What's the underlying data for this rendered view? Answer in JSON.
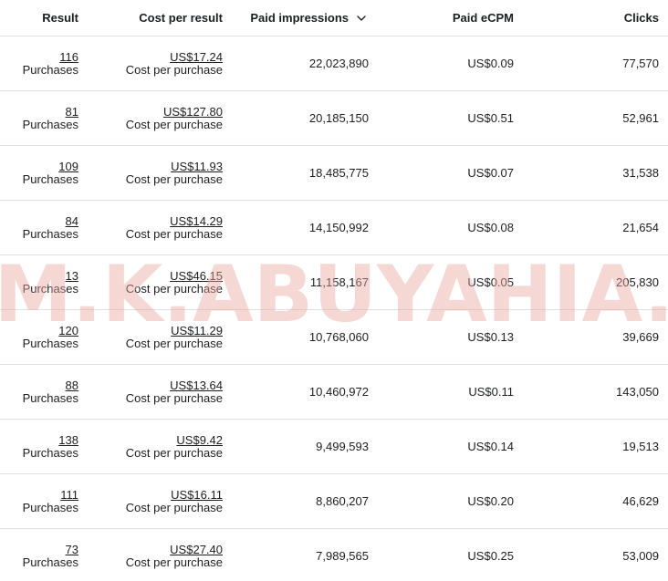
{
  "headers": {
    "result": "Result",
    "cost_per_result": "Cost per result",
    "paid_impressions": "Paid impressions",
    "paid_ecpm": "Paid eCPM",
    "clicks": "Clicks"
  },
  "sort": {
    "column": "paid_impressions",
    "icon": "chevron-down-icon"
  },
  "rows": [
    {
      "result": "116",
      "result_type": "Purchases",
      "cost": "US$17.24",
      "cost_type": "Cost per purchase",
      "impressions": "22,023,890",
      "ecpm": "US$0.09",
      "clicks": "77,570"
    },
    {
      "result": "81",
      "result_type": "Purchases",
      "cost": "US$127.80",
      "cost_type": "Cost per purchase",
      "impressions": "20,185,150",
      "ecpm": "US$0.51",
      "clicks": "52,961"
    },
    {
      "result": "109",
      "result_type": "Purchases",
      "cost": "US$11.93",
      "cost_type": "Cost per purchase",
      "impressions": "18,485,775",
      "ecpm": "US$0.07",
      "clicks": "31,538"
    },
    {
      "result": "84",
      "result_type": "Purchases",
      "cost": "US$14.29",
      "cost_type": "Cost per purchase",
      "impressions": "14,150,992",
      "ecpm": "US$0.08",
      "clicks": "21,654"
    },
    {
      "result": "13",
      "result_type": "Purchases",
      "cost": "US$46.15",
      "cost_type": "Cost per purchase",
      "impressions": "11,158,167",
      "ecpm": "US$0.05",
      "clicks": "205,830"
    },
    {
      "result": "120",
      "result_type": "Purchases",
      "cost": "US$11.29",
      "cost_type": "Cost per purchase",
      "impressions": "10,768,060",
      "ecpm": "US$0.13",
      "clicks": "39,669"
    },
    {
      "result": "88",
      "result_type": "Purchases",
      "cost": "US$13.64",
      "cost_type": "Cost per purchase",
      "impressions": "10,460,972",
      "ecpm": "US$0.11",
      "clicks": "143,050"
    },
    {
      "result": "138",
      "result_type": "Purchases",
      "cost": "US$9.42",
      "cost_type": "Cost per purchase",
      "impressions": "9,499,593",
      "ecpm": "US$0.14",
      "clicks": "19,513"
    },
    {
      "result": "111",
      "result_type": "Purchases",
      "cost": "US$16.11",
      "cost_type": "Cost per purchase",
      "impressions": "8,860,207",
      "ecpm": "US$0.20",
      "clicks": "46,629"
    },
    {
      "result": "73",
      "result_type": "Purchases",
      "cost": "US$27.40",
      "cost_type": "Cost per purchase",
      "impressions": "7,989,565",
      "ecpm": "US$0.25",
      "clicks": "53,009"
    }
  ],
  "watermark": {
    "text": "M.K.ABUYAHIA.",
    "color": "#e8a79f"
  }
}
